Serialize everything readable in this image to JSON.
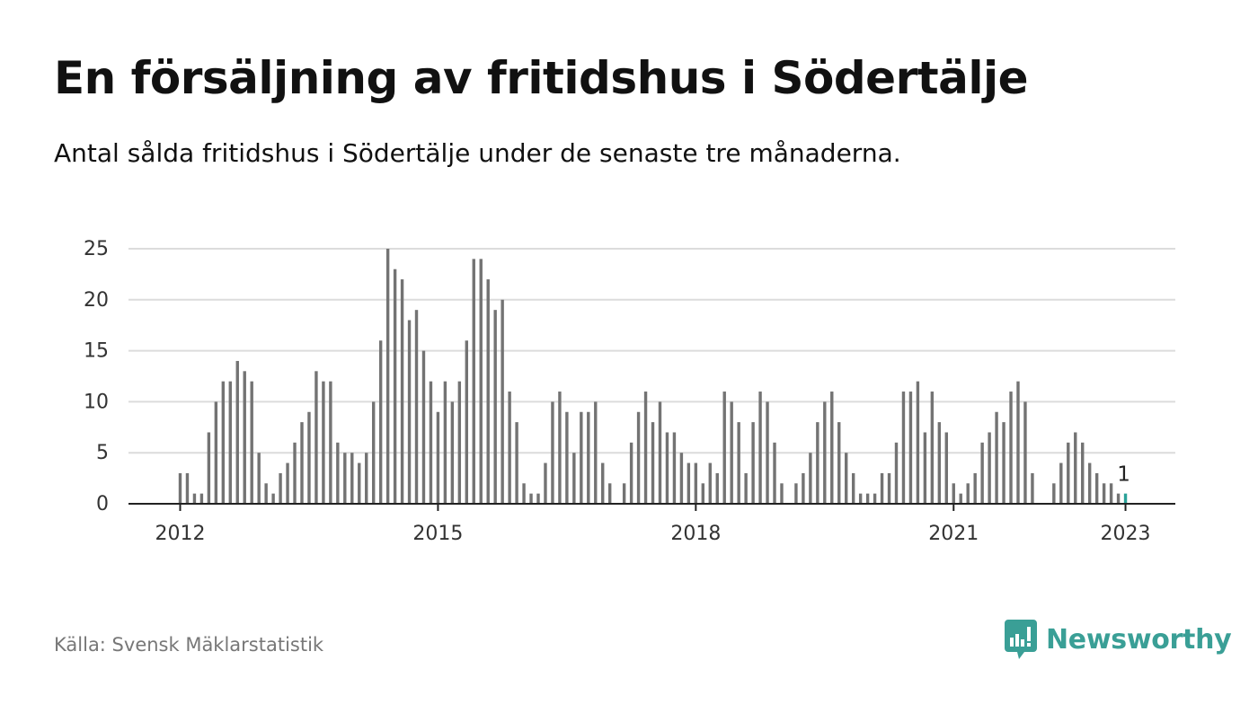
{
  "header": {
    "title": "En försäljning av fritidshus i Södertälje",
    "subtitle": "Antal sålda fritidshus i Södertälje under de senaste tre månaderna."
  },
  "footer": {
    "source": "Källa: Svensk Mäklarstatistik",
    "brand": "Newsworthy",
    "brand_icon": "bar-chart-speech-bubble-icon"
  },
  "colors": {
    "bar": "#737373",
    "highlight": "#2aa198",
    "grid": "#dcdcdc",
    "brand": "#3a9f96"
  },
  "chart_data": {
    "type": "bar",
    "x_start": "2012-01",
    "x_end": "2023-01",
    "values": [
      3,
      3,
      1,
      1,
      7,
      10,
      12,
      12,
      14,
      13,
      12,
      5,
      2,
      1,
      3,
      4,
      6,
      8,
      9,
      13,
      12,
      12,
      6,
      5,
      5,
      4,
      5,
      10,
      16,
      25,
      23,
      22,
      18,
      19,
      15,
      12,
      9,
      12,
      10,
      12,
      16,
      24,
      24,
      22,
      19,
      20,
      11,
      8,
      2,
      1,
      1,
      4,
      10,
      11,
      9,
      5,
      9,
      9,
      10,
      4,
      2,
      0,
      2,
      6,
      9,
      11,
      8,
      10,
      7,
      7,
      5,
      4,
      4,
      2,
      4,
      3,
      11,
      10,
      8,
      3,
      8,
      11,
      10,
      6,
      2,
      0,
      2,
      3,
      5,
      8,
      10,
      11,
      8,
      5,
      3,
      1,
      1,
      1,
      3,
      3,
      6,
      11,
      11,
      12,
      7,
      11,
      8,
      7,
      2,
      1,
      2,
      3,
      6,
      7,
      9,
      8,
      11,
      12,
      10,
      3,
      0,
      0,
      2,
      4,
      6,
      7,
      6,
      4,
      3,
      2,
      2,
      1,
      1
    ],
    "highlight_index": 132,
    "highlight_label": "1",
    "y_ticks": [
      0,
      5,
      10,
      15,
      20,
      25
    ],
    "x_ticks": [
      {
        "label": "2012",
        "index": 0
      },
      {
        "label": "2015",
        "index": 36
      },
      {
        "label": "2018",
        "index": 72
      },
      {
        "label": "2021",
        "index": 108
      },
      {
        "label": "2023",
        "index": 132
      }
    ],
    "ylim": [
      0,
      25
    ],
    "grid": true
  }
}
